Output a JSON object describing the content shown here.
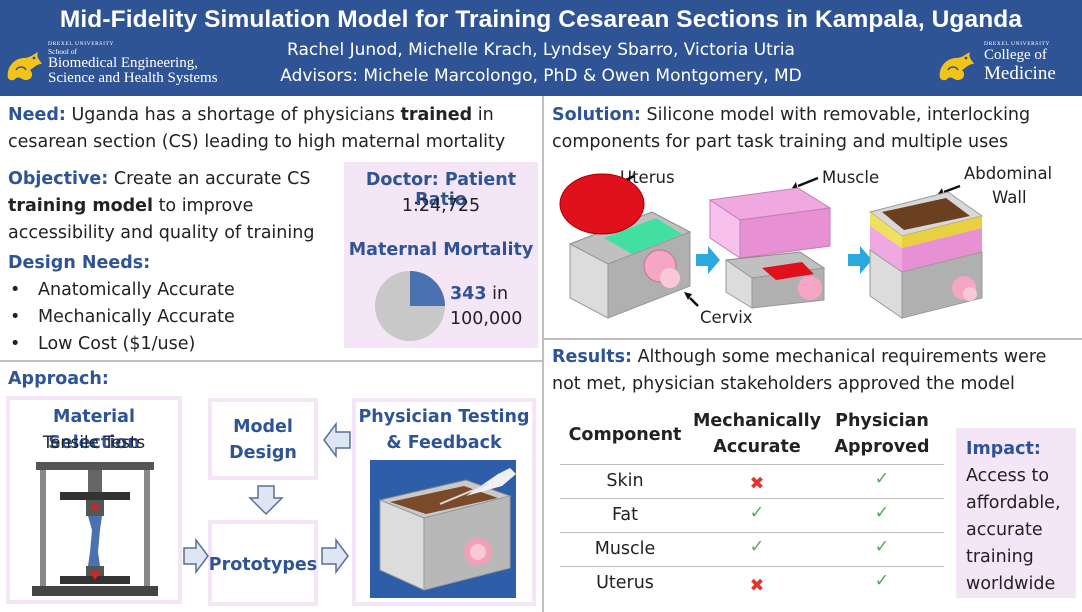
{
  "header": {
    "title": "Mid-Fidelity Simulation Model for Training Cesarean Sections in Kampala, Uganda",
    "authors": "Rachel Junod, Michelle Krach, Lyndsey Sbarro, Victoria Utria",
    "advisors": "Advisors: Michele Marcolongo, PhD & Owen Montgomery, MD",
    "logo_left": {
      "university": "DREXEL UNIVERSITY",
      "school": "School of",
      "line1": "Biomedical Engineering,",
      "line2": "Science and Health Systems"
    },
    "logo_right": {
      "university": "DREXEL UNIVERSITY",
      "line1": "College of",
      "line2": "Medicine"
    }
  },
  "need": {
    "label": "Need:",
    "text_a": " Uganda has a shortage of physicians ",
    "bold": "trained",
    "text_b": " in cesarean section (CS) leading to high maternal mortality"
  },
  "objective": {
    "label": "Objective:",
    "text_a": " Create an accurate CS ",
    "bold": "training model",
    "text_b": " to improve accessibility and quality of training"
  },
  "design_needs": {
    "label": "Design Needs:",
    "items": [
      "Anatomically Accurate",
      "Mechanically Accurate",
      "Low Cost ($1/use)"
    ]
  },
  "stats": {
    "ratio_label": "Doctor: Patient Ratio",
    "ratio_value": "1:24,725",
    "mortality_label": "Maternal Mortality",
    "mortality_number": "343",
    "mortality_in": " in",
    "mortality_per": "100,000",
    "mortality_fraction": 0.25,
    "pie_colors": {
      "main": "#c8c8c8",
      "slice": "#4a72b0"
    }
  },
  "approach": {
    "label": "Approach:",
    "material_title": "Material Selection",
    "material_sub": "Tensile Tests",
    "model_design": [
      "Model",
      "Design"
    ],
    "prototypes": "Prototypes",
    "physician": [
      "Physician Testing",
      "& Feedback"
    ]
  },
  "solution": {
    "label": "Solution:",
    "text": " Silicone model with removable, interlocking components for part task training and multiple uses",
    "callouts": {
      "uterus": "Uterus",
      "muscle": "Muscle",
      "abdominal": "Abdominal",
      "wall": "Wall",
      "cervix": "Cervix"
    }
  },
  "results": {
    "label": "Results:",
    "text": " Although some mechanical requirements were not met, physician stakeholders approved the model",
    "table": {
      "headers": {
        "component": "Component",
        "mech_1": "Mechanically",
        "mech_2": "Accurate",
        "phys_1": "Physician",
        "phys_2": "Approved"
      },
      "rows": [
        {
          "component": "Skin",
          "mech": "✖",
          "phys": "✓"
        },
        {
          "component": "Fat",
          "mech": "✓",
          "phys": "✓"
        },
        {
          "component": "Muscle",
          "mech": "✓",
          "phys": "✓"
        },
        {
          "component": "Uterus",
          "mech": "✖",
          "phys": "✓"
        }
      ]
    }
  },
  "impact": {
    "label": "Impact:",
    "lines": [
      "Access to",
      "affordable,",
      "accurate",
      "training",
      "worldwide"
    ]
  },
  "colors": {
    "header_bg": "#2f5496",
    "accent_blue": "#2f5496",
    "pink_box": "#f4e6f6",
    "check_green": "#4caf50",
    "cross_red": "#e0362b"
  }
}
